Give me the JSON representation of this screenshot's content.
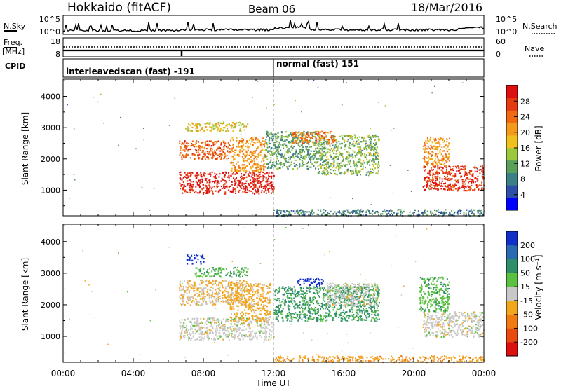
{
  "header": {
    "station": "Hokkaido (fitACF)",
    "beam": "Beam 06",
    "date": "18/Mar/2016"
  },
  "top_panels": {
    "left_labels": {
      "nsky": "N.Sky",
      "freq_line1": "Freq.",
      "freq_line2": "[MHz]",
      "cpid": "CPID"
    },
    "right_labels": {
      "nsearch": "N.Search",
      "nave": "Nave"
    },
    "noise_ticks_left": [
      "10^5",
      "10^0"
    ],
    "noise_ticks_right": [
      "10^5",
      "10^0"
    ],
    "freq_ticks_left": [
      "18",
      "8"
    ],
    "nave_ticks_right": [
      "60",
      "0"
    ],
    "cpid_labels": [
      {
        "text": "interleavedscan (fast) -191",
        "start_hour": 0
      },
      {
        "text": "normal (fast) 151",
        "start_hour": 12
      }
    ]
  },
  "power_colorbar": {
    "title": "Power [dB]",
    "ticks": [
      "28",
      "24",
      "20",
      "16",
      "12",
      "8",
      "4"
    ],
    "colors": [
      "#0000ff",
      "#2e4fa8",
      "#3c7f86",
      "#5ba05a",
      "#9cc83d",
      "#f0c020",
      "#f39a1c",
      "#f06a12",
      "#e63a10",
      "#dd0f0f"
    ]
  },
  "velocity_colorbar": {
    "title": "Velocity [m s⁻¹]",
    "ticks": [
      "200",
      "100",
      "50",
      "15",
      "-15",
      "-50",
      "-100",
      "-200"
    ],
    "colors": [
      "#1030c8",
      "#2a6ab0",
      "#2f8f6a",
      "#5cc040",
      "#c8c8c8",
      "#f2a51e",
      "#f07a14",
      "#e84a10",
      "#dd1010"
    ]
  },
  "chart_data": [
    {
      "type": "heatmap",
      "title": "Power",
      "ylabel": "Slant Range [km]",
      "xlabel": "Time UT",
      "x_range_hours": [
        0,
        24
      ],
      "ylim": [
        180,
        4550
      ],
      "y_ticks": [
        1000,
        2000,
        3000,
        4000
      ],
      "regions": [
        {
          "t0": 6.6,
          "t1": 12.0,
          "r0": 900,
          "r1": 1600,
          "value": 28
        },
        {
          "t0": 6.6,
          "t1": 9.5,
          "r0": 2000,
          "r1": 2600,
          "value": 24
        },
        {
          "t0": 9.5,
          "t1": 11.5,
          "r0": 1600,
          "r1": 2700,
          "value": 20
        },
        {
          "t0": 7.0,
          "t1": 10.5,
          "r0": 2900,
          "r1": 3200,
          "value": 16
        },
        {
          "t0": 11.5,
          "t1": 14.5,
          "r0": 1700,
          "r1": 2900,
          "value": 10
        },
        {
          "t0": 14.5,
          "t1": 18.0,
          "r0": 1500,
          "r1": 2800,
          "value": 12
        },
        {
          "t0": 13.0,
          "t1": 15.5,
          "r0": 2500,
          "r1": 2900,
          "value": 22
        },
        {
          "t0": 20.5,
          "t1": 24.0,
          "r0": 1000,
          "r1": 1800,
          "value": 26
        },
        {
          "t0": 20.5,
          "t1": 22.0,
          "r0": 1800,
          "r1": 2700,
          "value": 20
        },
        {
          "t0": 12.0,
          "t1": 24.0,
          "r0": 200,
          "r1": 400,
          "value": 8
        }
      ]
    },
    {
      "type": "heatmap",
      "title": "Velocity",
      "ylabel": "Slant Range [km]",
      "xlabel": "Time UT",
      "x_range_hours": [
        0,
        24
      ],
      "ylim": [
        180,
        4550
      ],
      "y_ticks": [
        1000,
        2000,
        3000,
        4000
      ],
      "regions": [
        {
          "t0": 6.6,
          "t1": 12.0,
          "r0": 900,
          "r1": 1600,
          "value": 0
        },
        {
          "t0": 6.6,
          "t1": 10.5,
          "r0": 2000,
          "r1": 2800,
          "value": -20
        },
        {
          "t0": 9.5,
          "t1": 11.8,
          "r0": 1500,
          "r1": 2700,
          "value": -30
        },
        {
          "t0": 7.5,
          "t1": 10.5,
          "r0": 2900,
          "r1": 3200,
          "value": 40
        },
        {
          "t0": 7.0,
          "t1": 8.0,
          "r0": 3300,
          "r1": 3600,
          "value": 220
        },
        {
          "t0": 13.3,
          "t1": 14.8,
          "r0": 2600,
          "r1": 2850,
          "value": 230
        },
        {
          "t0": 12.0,
          "t1": 18.0,
          "r0": 1500,
          "r1": 2600,
          "value": 60
        },
        {
          "t0": 15.0,
          "t1": 18.0,
          "r0": 2000,
          "r1": 2700,
          "value": 0
        },
        {
          "t0": 20.5,
          "t1": 24.0,
          "r0": 1000,
          "r1": 1800,
          "value": 0
        },
        {
          "t0": 20.3,
          "t1": 22.0,
          "r0": 1800,
          "r1": 2900,
          "value": 40
        },
        {
          "t0": 12.0,
          "t1": 24.0,
          "r0": 200,
          "r1": 400,
          "value": -40
        }
      ]
    }
  ],
  "time_axis": {
    "ticks": [
      "00:00",
      "04:00",
      "08:00",
      "12:00",
      "16:00",
      "20:00",
      "00:00"
    ],
    "label": "Time UT"
  }
}
